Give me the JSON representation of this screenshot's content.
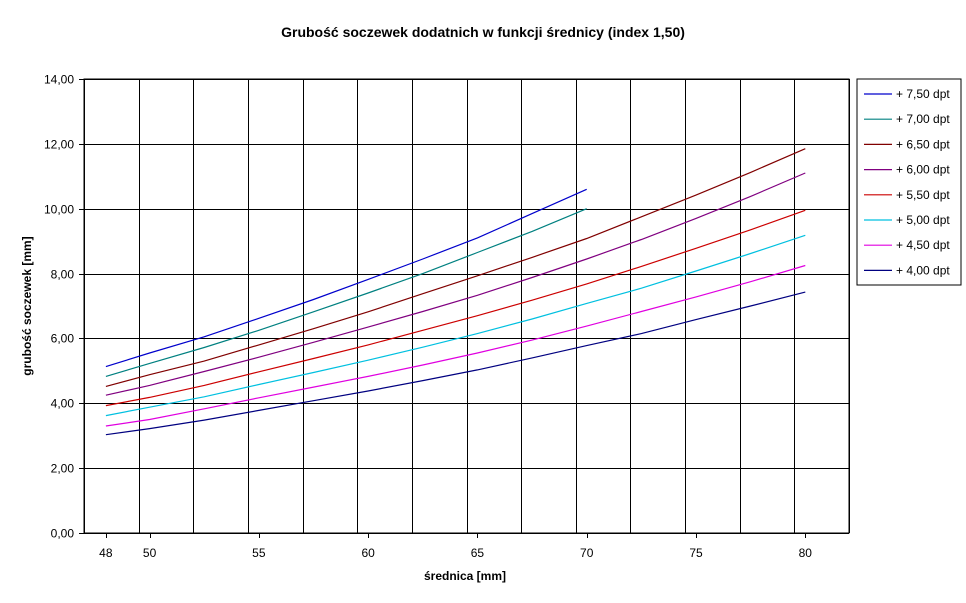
{
  "chart_data": {
    "type": "line",
    "title": "Grubość soczewek dodatnich w funkcji średnicy (index 1,50)",
    "xlabel": "średnica [mm]",
    "ylabel": "grubość soczewek [mm]",
    "x": [
      48,
      50,
      52.5,
      55,
      57.5,
      60,
      62.5,
      65,
      67.5,
      70,
      72.5,
      75,
      77.5,
      80
    ],
    "xticks": [
      "48",
      "50",
      "55",
      "60",
      "65",
      "70",
      "75",
      "80"
    ],
    "yticks": [
      "0,00",
      "2,00",
      "4,00",
      "6,00",
      "8,00",
      "10,00",
      "12,00",
      "14,00"
    ],
    "ylim": [
      0,
      14
    ],
    "grid": true,
    "legend_position": "right",
    "series": [
      {
        "name": "+ 7,50 dpt",
        "color": "#0000cc",
        "values": [
          5.13,
          5.55,
          6.05,
          6.62,
          7.2,
          7.82,
          8.45,
          9.1,
          9.85,
          10.6,
          null,
          null,
          null,
          null
        ]
      },
      {
        "name": "+ 7,00 dpt",
        "color": "#008080",
        "values": [
          4.83,
          5.23,
          5.72,
          6.25,
          6.82,
          7.4,
          8.0,
          8.65,
          9.3,
          10.0,
          null,
          null,
          null,
          null
        ]
      },
      {
        "name": "+ 6,50 dpt",
        "color": "#800000",
        "values": [
          4.52,
          4.88,
          5.3,
          5.8,
          6.3,
          6.82,
          7.38,
          7.93,
          8.5,
          9.08,
          9.75,
          10.42,
          11.12,
          11.85
        ]
      },
      {
        "name": "+ 6,00 dpt",
        "color": "#800080",
        "values": [
          4.25,
          4.55,
          4.98,
          5.42,
          5.88,
          6.35,
          6.83,
          7.33,
          7.88,
          8.45,
          9.05,
          9.7,
          10.38,
          11.1
        ]
      },
      {
        "name": "+ 5,50 dpt",
        "color": "#cc0000",
        "values": [
          3.93,
          4.18,
          4.55,
          4.97,
          5.38,
          5.8,
          6.25,
          6.7,
          7.18,
          7.68,
          8.22,
          8.78,
          9.35,
          9.95
        ]
      },
      {
        "name": "+ 5,00 dpt",
        "color": "#00c0e0",
        "values": [
          3.62,
          3.88,
          4.2,
          4.58,
          4.95,
          5.33,
          5.73,
          6.15,
          6.6,
          7.08,
          7.55,
          8.08,
          8.62,
          9.18
        ]
      },
      {
        "name": "+ 4,50 dpt",
        "color": "#e000e0",
        "values": [
          3.3,
          3.5,
          3.83,
          4.17,
          4.5,
          4.83,
          5.18,
          5.55,
          5.95,
          6.38,
          6.83,
          7.28,
          7.75,
          8.25
        ]
      },
      {
        "name": "+ 4,00 dpt",
        "color": "#000080",
        "values": [
          3.03,
          3.22,
          3.48,
          3.78,
          4.08,
          4.38,
          4.7,
          5.03,
          5.4,
          5.78,
          6.15,
          6.58,
          7.0,
          7.43
        ]
      }
    ]
  }
}
